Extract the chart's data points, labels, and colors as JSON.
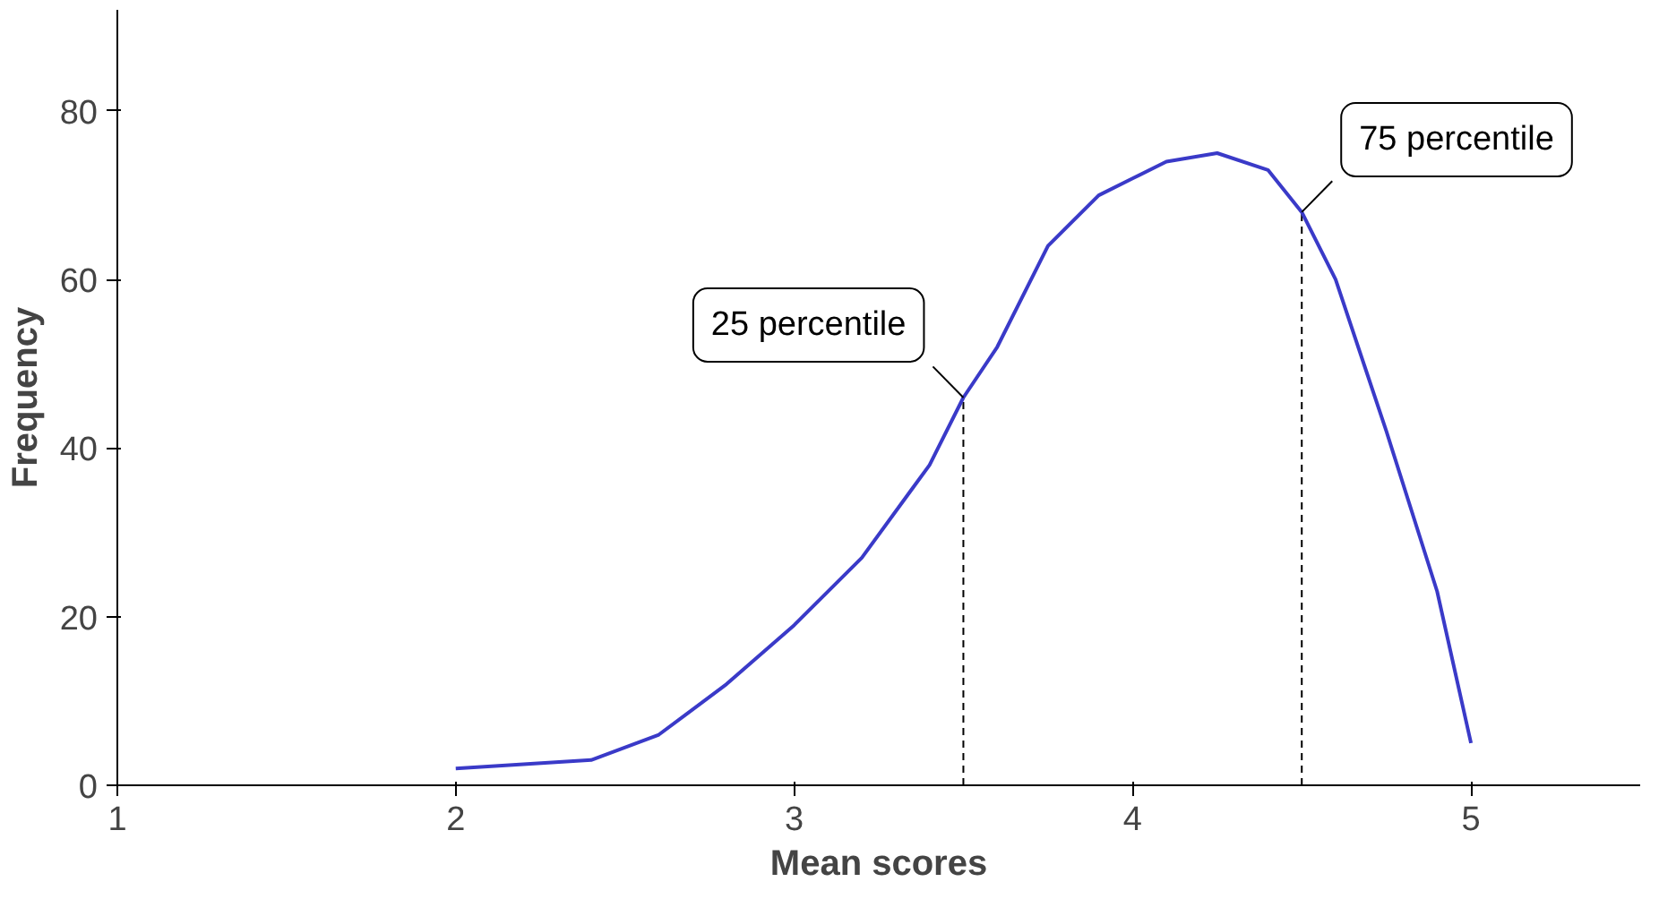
{
  "chart_data": {
    "type": "line",
    "xlabel": "Mean scores",
    "ylabel": "Frequency",
    "x": [
      2.0,
      2.2,
      2.4,
      2.6,
      2.8,
      3.0,
      3.2,
      3.4,
      3.5,
      3.6,
      3.75,
      3.9,
      4.0,
      4.1,
      4.25,
      4.4,
      4.5,
      4.6,
      4.75,
      4.9,
      5.0
    ],
    "series": [
      {
        "color": "#3a3ac8",
        "values": [
          2,
          2.5,
          3,
          6,
          12,
          19,
          27,
          38,
          46,
          52,
          64,
          70,
          72,
          74,
          75,
          73,
          68,
          60,
          42,
          23,
          5
        ]
      }
    ],
    "xlim": [
      1,
      5.5
    ],
    "xticks": [
      1,
      2,
      3,
      4,
      5
    ],
    "ylim": [
      0,
      92
    ],
    "yticks": [
      0,
      20,
      40,
      60,
      80
    ],
    "ref_lines": [
      {
        "axis": "x",
        "value": 3.5,
        "label": "25 percentile",
        "line_style": "dashed"
      },
      {
        "axis": "x",
        "value": 4.5,
        "label": "75 percentile",
        "line_style": "dashed"
      }
    ],
    "grid": false,
    "marker": "none",
    "line_style": "solid"
  }
}
